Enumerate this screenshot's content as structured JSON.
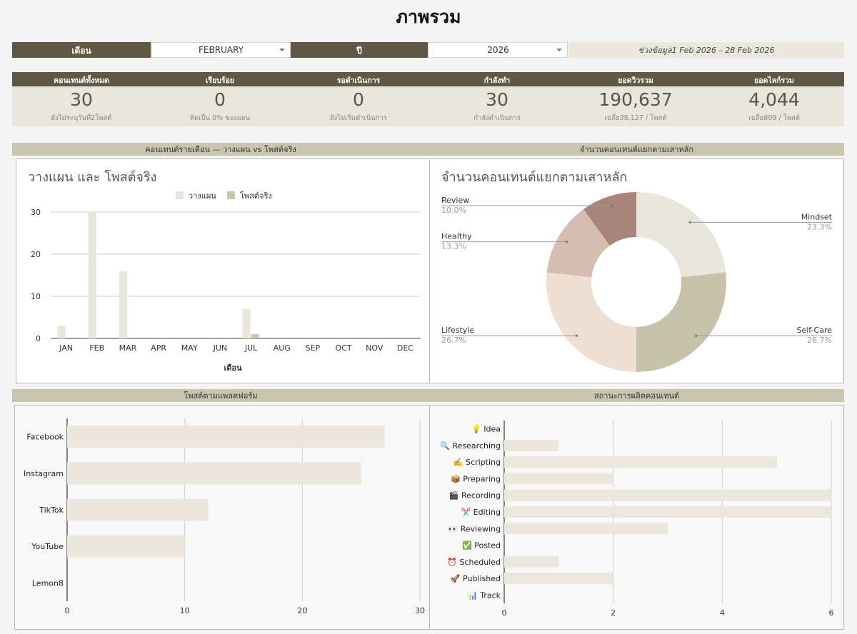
{
  "page": {
    "title": "ภาพรวม"
  },
  "filters": {
    "month_label": "เดือน",
    "month_value": "FEBRUARY",
    "year_label": "ปี",
    "year_value": "2026",
    "range_text": "ช่วงข้อมูล1 Feb 2026 – 28 Feb 2026"
  },
  "kpis": [
    {
      "label": "คอนเทนต์ทั้งหมด",
      "value": "30",
      "sub": "ยังไม่ระบุวันที่2โพสต์"
    },
    {
      "label": "เรียบร้อย",
      "value": "0",
      "sub": "คิดเป็น 0% ของแผน"
    },
    {
      "label": "รอดำเนินการ",
      "value": "0",
      "sub": "ยังไม่เริ่มดำเนินการ"
    },
    {
      "label": "กำลังทำ",
      "value": "30",
      "sub": "กำลังดำเนินการ"
    },
    {
      "label": "ยอดวิวรวม",
      "value": "190,637",
      "sub": "เฉลี่ย38,127 / โพสต์"
    },
    {
      "label": "ยอดไลก์รวม",
      "value": "4,044",
      "sub": "เฉลี่ย809 / โพสต์"
    }
  ],
  "sections": {
    "monthly": "คอนเทนต์รายเดือน — วางแผน vs โพสต์จริง",
    "pillars": "จำนวนคอนเทนต์แยกตามเสาหลัก",
    "platforms": "โพสต์ตามแพลตฟอร์ม",
    "status": "สถานะการผลิตคอนเทนต์"
  },
  "colors": {
    "dark": "#5f5845",
    "planned": "#e8e5da",
    "posted": "#c9c6b0",
    "bar": "#ebe7dd"
  },
  "chart_data": [
    {
      "type": "bar",
      "title": "วางแผน และ โพสต์จริง",
      "xlabel": "เดือน",
      "ylabel": "",
      "categories": [
        "JAN",
        "FEB",
        "MAR",
        "APR",
        "MAY",
        "JUN",
        "JUL",
        "AUG",
        "SEP",
        "OCT",
        "NOV",
        "DEC"
      ],
      "series": [
        {
          "name": "วางแผน",
          "color": "#e8e5da",
          "values": [
            3,
            30,
            16,
            0,
            0,
            0,
            7,
            0,
            0,
            0,
            0,
            0
          ]
        },
        {
          "name": "โพสต์จริง",
          "color": "#c9c6b0",
          "values": [
            0,
            0,
            0,
            0,
            0,
            0,
            1,
            0,
            0,
            0,
            0,
            0
          ]
        }
      ],
      "ylim": [
        0,
        30
      ],
      "yticks": [
        0,
        10,
        20,
        30
      ],
      "legend": "top",
      "grid": true
    },
    {
      "type": "pie",
      "title": "จำนวนคอนเทนต์แยกตามเสาหลัก",
      "hole": true,
      "slices": [
        {
          "label": "Mindset",
          "value": 23.3,
          "pct": "23.3%",
          "color": "#e8e5da"
        },
        {
          "label": "Self-Care",
          "value": 26.7,
          "pct": "26.7%",
          "color": "#c5c2aa"
        },
        {
          "label": "Lifestyle",
          "value": 26.7,
          "pct": "26.7%",
          "color": "#efdfd2"
        },
        {
          "label": "Healthy",
          "value": 13.3,
          "pct": "13.3%",
          "color": "#d4bcae"
        },
        {
          "label": "Review",
          "value": 10.0,
          "pct": "10.0%",
          "color": "#a8857b"
        }
      ]
    },
    {
      "type": "bar",
      "orientation": "horizontal",
      "categories": [
        "Facebook",
        "Instagram",
        "TikTok",
        "YouTube",
        "Lemon8"
      ],
      "values": [
        27,
        25,
        12,
        10,
        0
      ],
      "xlim": [
        0,
        30
      ],
      "xticks": [
        0,
        10,
        20,
        30
      ],
      "grid": true
    },
    {
      "type": "bar",
      "orientation": "horizontal",
      "categories": [
        "💡 Idea",
        "🔍 Researching",
        "✍️ Scripting",
        "📦 Preparing",
        "🎬 Recording",
        "✂️ Editing",
        "👀 Reviewing",
        "✅ Posted",
        "⏰ Scheduled",
        "🚀 Published",
        "📊 Track"
      ],
      "values": [
        0,
        1,
        5,
        2,
        6,
        6,
        3,
        0,
        1,
        2,
        0
      ],
      "xlim": [
        0,
        6
      ],
      "xticks": [
        0,
        2,
        4,
        6
      ],
      "grid": true
    }
  ]
}
